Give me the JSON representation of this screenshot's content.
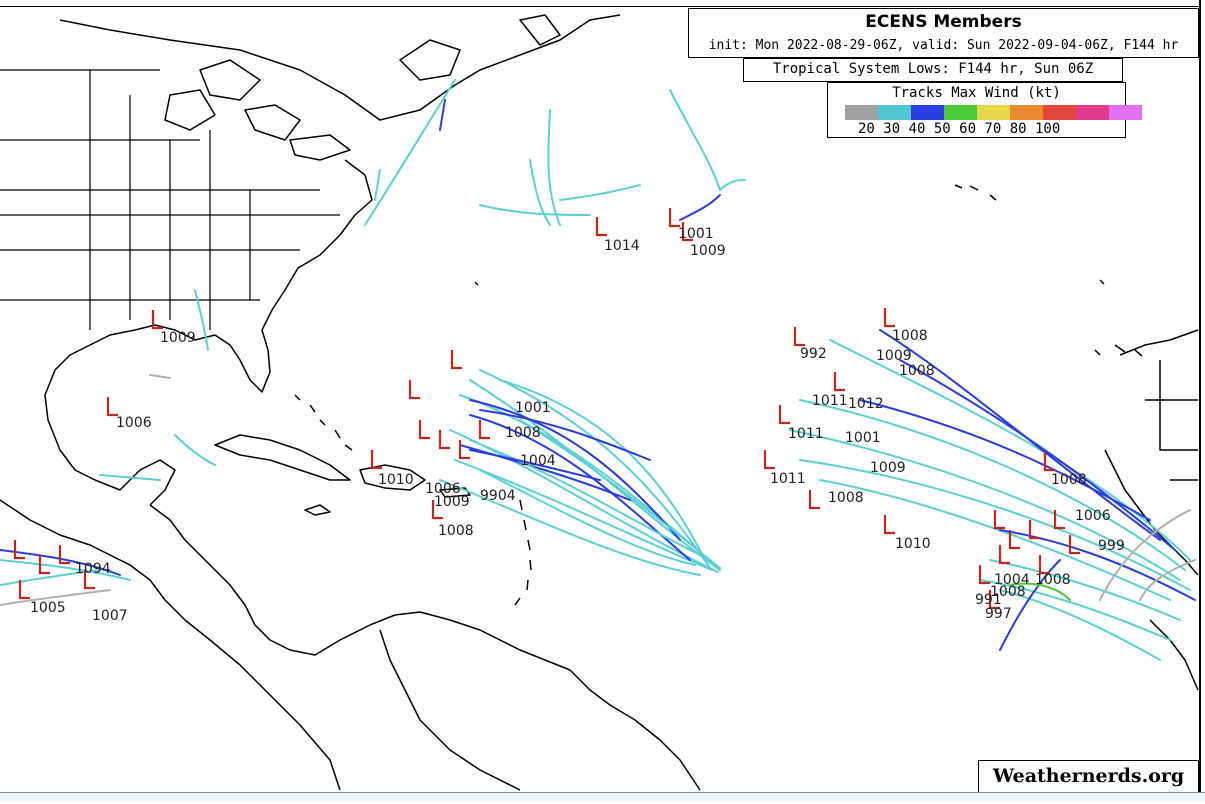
{
  "title": "ECENS Members",
  "subtitle": "init: Mon 2022-08-29-06Z, valid: Sun 2022-09-04-06Z, F144 hr",
  "lows_label": "Tropical System Lows: F144 hr, Sun 06Z",
  "legend": {
    "title": "Tracks Max Wind (kt)",
    "ticks": "20 30 40 50 60 70 80 100",
    "colors": [
      "#a0a0a0",
      "#50c8d2",
      "#2a3ee0",
      "#49c83a",
      "#e6d84a",
      "#e98a2c",
      "#e0463a",
      "#e03a8a",
      "#e070f0"
    ]
  },
  "credit": "Weathernerds.org",
  "colors": {
    "track_main": "#5ccfd4",
    "track_strong": "#2a3ee0",
    "track_weak": "#b0b0b0",
    "low_marker": "#c0281e",
    "coast": "#000000"
  },
  "pressure_labels": [
    {
      "id": "p1014",
      "text": "1014"
    },
    {
      "id": "p1001a",
      "text": "1001"
    },
    {
      "id": "p1009a",
      "text": "1009"
    },
    {
      "id": "p1009gulf",
      "text": "1009"
    },
    {
      "id": "p1006gulf",
      "text": "1006"
    },
    {
      "id": "p1006car",
      "text": "1006"
    },
    {
      "id": "p1008car",
      "text": "1008"
    },
    {
      "id": "p1010car",
      "text": "1010"
    },
    {
      "id": "p1001car",
      "text": "1001"
    },
    {
      "id": "p1008car2",
      "text": "1008"
    },
    {
      "id": "p1004car",
      "text": "1004"
    },
    {
      "id": "p1009car",
      "text": "1009"
    },
    {
      "id": "p9904",
      "text": "9904"
    },
    {
      "id": "p1005w",
      "text": "1005"
    },
    {
      "id": "p1007w",
      "text": "1007"
    },
    {
      "id": "p1094w",
      "text": "1094"
    },
    {
      "id": "p1008e1",
      "text": "1008"
    },
    {
      "id": "p992e",
      "text": "992"
    },
    {
      "id": "p1009e",
      "text": "1009"
    },
    {
      "id": "p1008e2",
      "text": "1008"
    },
    {
      "id": "p1011e1",
      "text": "1011"
    },
    {
      "id": "p1012e",
      "text": "1012"
    },
    {
      "id": "p1001e",
      "text": "1001"
    },
    {
      "id": "p1011e2",
      "text": "1011"
    },
    {
      "id": "p1009e2",
      "text": "1009"
    },
    {
      "id": "p1008e3",
      "text": "1008"
    },
    {
      "id": "p1011e3",
      "text": "1011"
    },
    {
      "id": "p1010e",
      "text": "1010"
    },
    {
      "id": "p1008e4",
      "text": "1008"
    },
    {
      "id": "p1006e",
      "text": "1006"
    },
    {
      "id": "p999e",
      "text": "999"
    },
    {
      "id": "p1008e5",
      "text": "1008"
    },
    {
      "id": "p1004e",
      "text": "1004"
    },
    {
      "id": "p1008e6",
      "text": "1008"
    },
    {
      "id": "p997e",
      "text": "997"
    },
    {
      "id": "p991e",
      "text": "991"
    }
  ]
}
